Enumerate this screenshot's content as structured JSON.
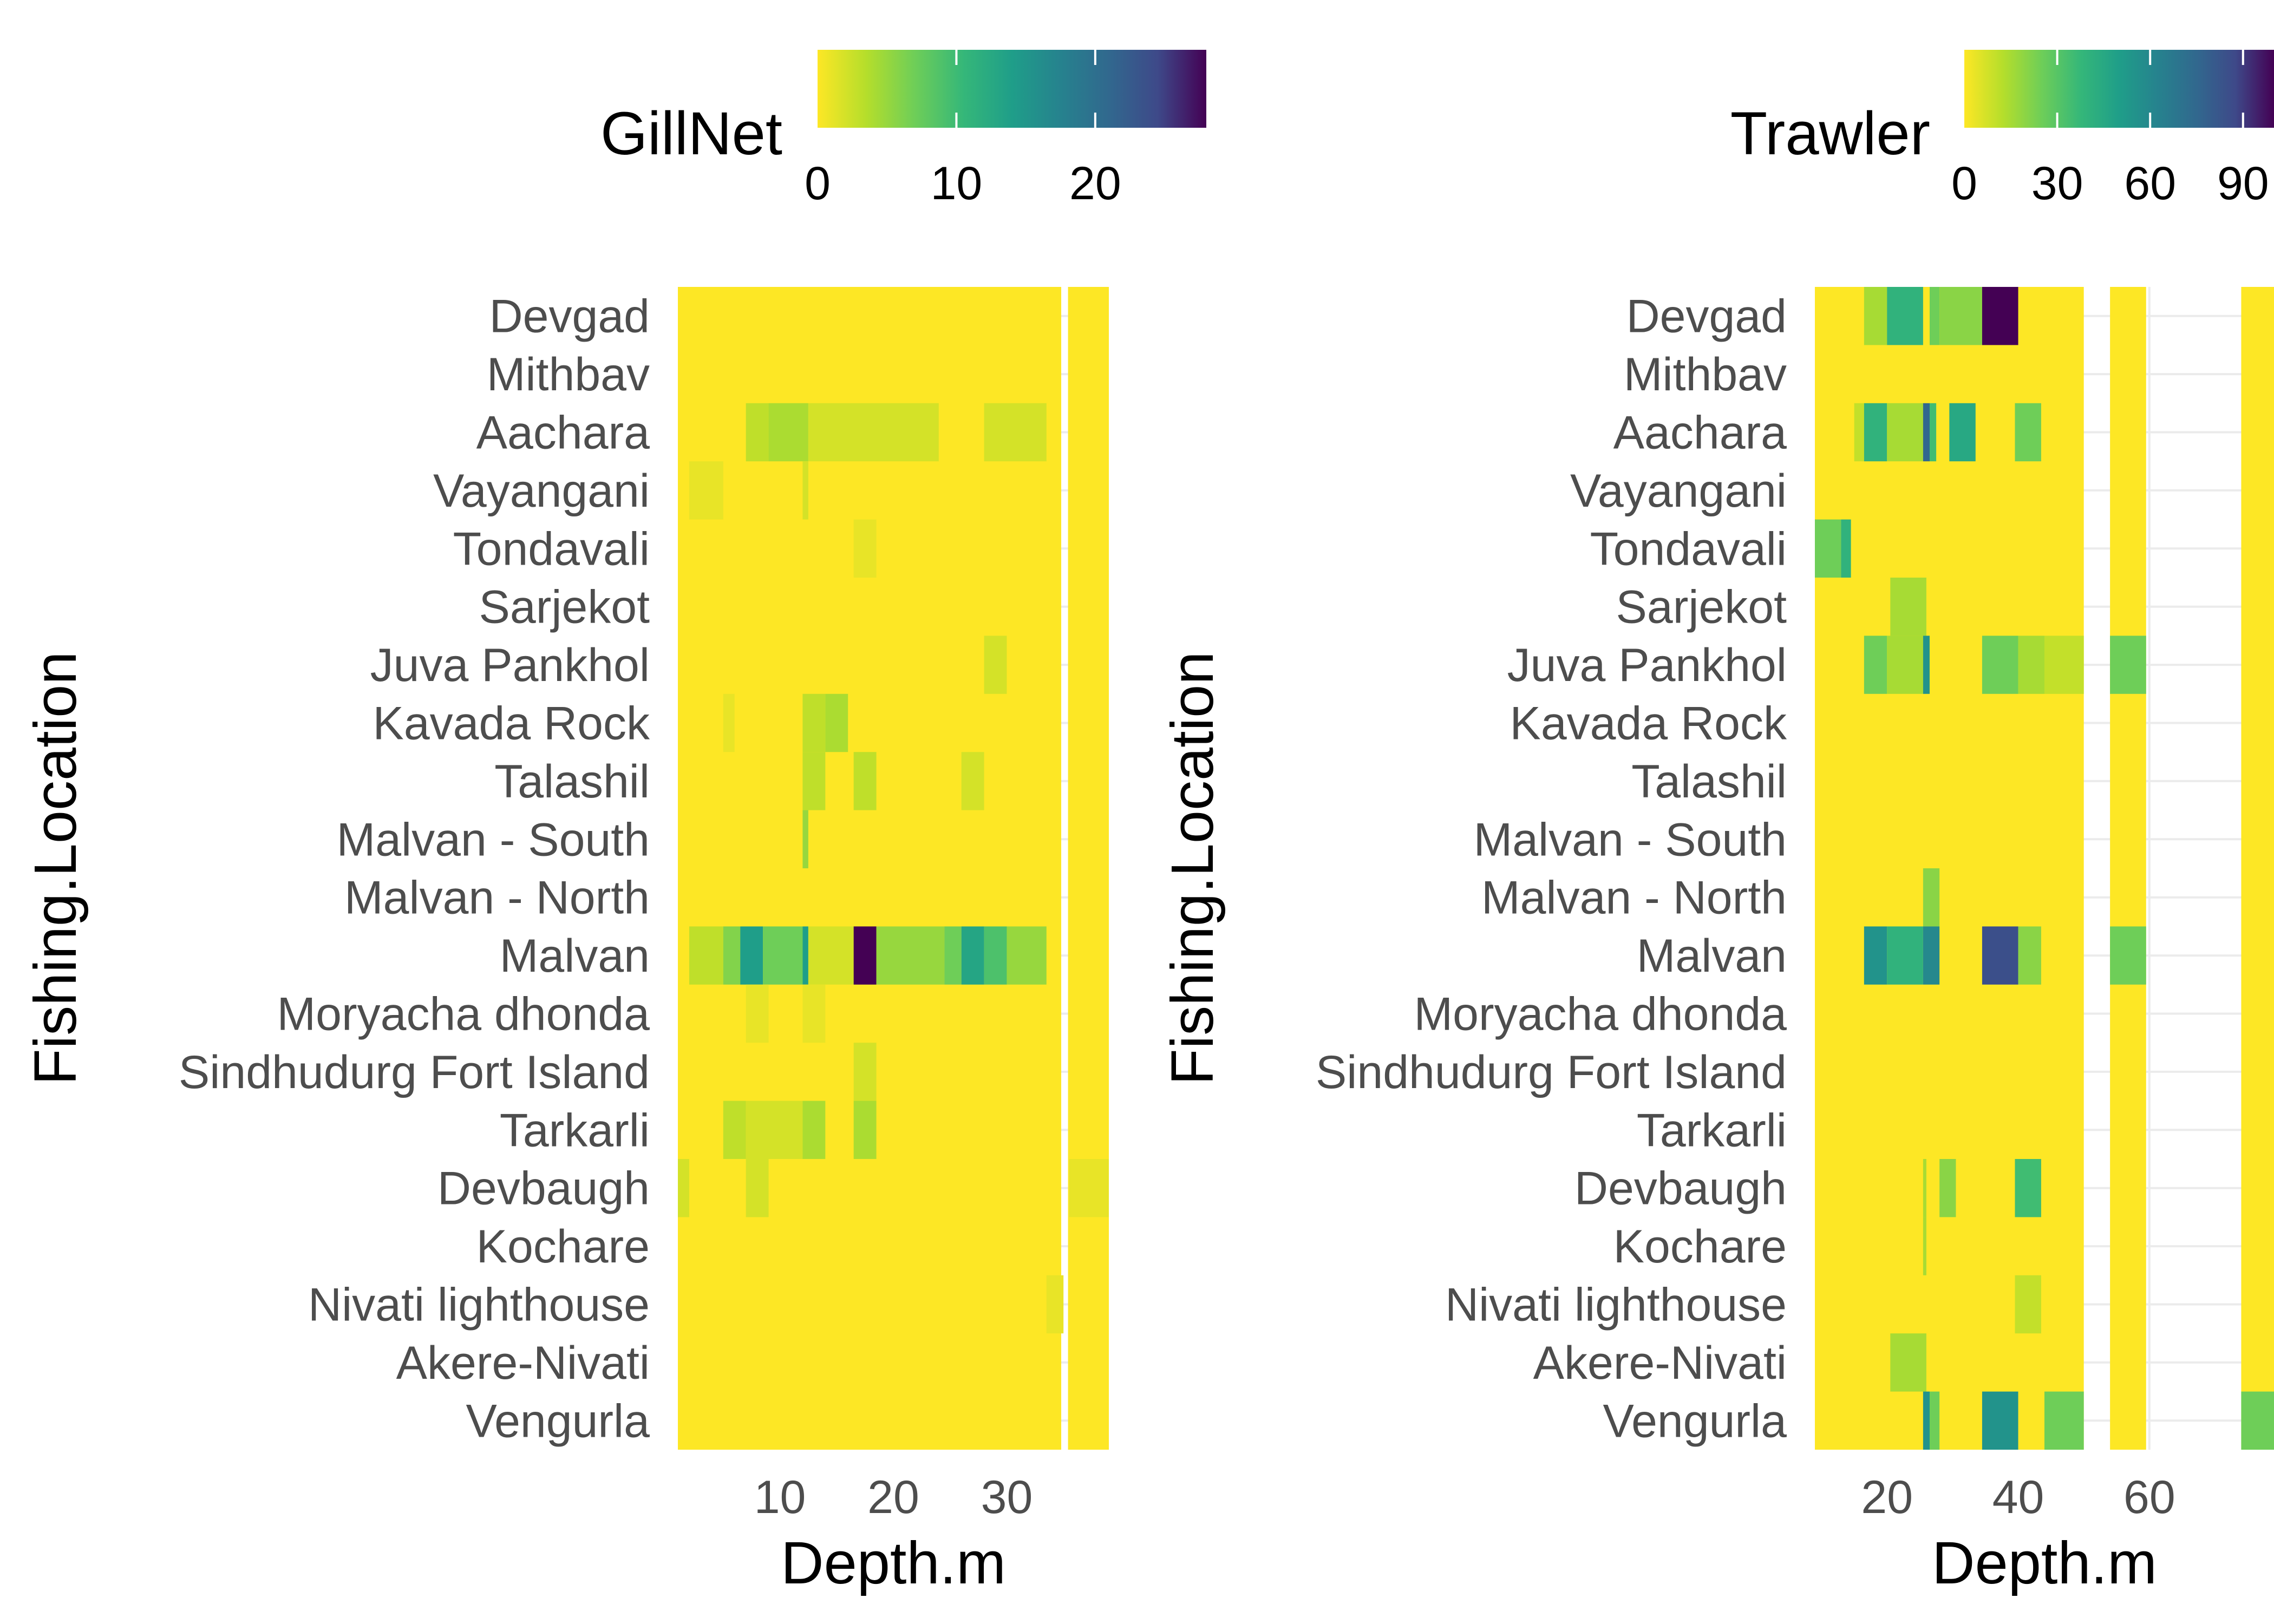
{
  "chart_data": [
    {
      "type": "heatmap",
      "legend_title": "GillNet",
      "legend_ticks": [
        0,
        10,
        20
      ],
      "legend_range": [
        0,
        28
      ],
      "legend_position": "top",
      "xlabel": "Depth.m",
      "ylabel": "Fishing.Location",
      "x_ticks": [
        10,
        20,
        30
      ],
      "xlim": [
        1,
        39
      ],
      "grid": true,
      "categories": [
        "Devgad",
        "Mithbav",
        "Aachara",
        "Vayangani",
        "Tondavali",
        "Sarjekot",
        "Juva Pankhol",
        "Kavada Rock",
        "Talashil",
        "Malvan - South",
        "Malvan - North",
        "Malvan",
        "Moryacha dhonda",
        "Sindhudurg Fort Island",
        "Tarkarli",
        "Devbaugh",
        "Kochare",
        "Nivati lighthouse",
        "Akere-Nivati",
        "Vengurla"
      ],
      "tiles_data_range": [
        {
          "x": [
            1,
            34.8
          ],
          "y": "all",
          "value": 0
        },
        {
          "x": [
            35.4,
            39
          ],
          "y": "all",
          "value": 0
        }
      ],
      "cells": [
        {
          "y": "Aachara",
          "x": [
            7,
            9
          ],
          "value": 3
        },
        {
          "y": "Aachara",
          "x": [
            9,
            12.5
          ],
          "value": 4
        },
        {
          "y": "Aachara",
          "x": [
            12.5,
            24
          ],
          "value": 2
        },
        {
          "y": "Aachara",
          "x": [
            28,
            33.5
          ],
          "value": 2
        },
        {
          "y": "Vayangani",
          "x": [
            2,
            5
          ],
          "value": 1
        },
        {
          "y": "Vayangani",
          "x": [
            12,
            12.5
          ],
          "value": 2
        },
        {
          "y": "Tondavali",
          "x": [
            16.5,
            18.5
          ],
          "value": 1
        },
        {
          "y": "Juva Pankhol",
          "x": [
            28,
            30
          ],
          "value": 2
        },
        {
          "y": "Kavada Rock",
          "x": [
            5,
            6
          ],
          "value": 1
        },
        {
          "y": "Kavada Rock",
          "x": [
            12,
            14
          ],
          "value": 3
        },
        {
          "y": "Kavada Rock",
          "x": [
            14,
            16
          ],
          "value": 4
        },
        {
          "y": "Talashil",
          "x": [
            12,
            14
          ],
          "value": 3
        },
        {
          "y": "Talashil",
          "x": [
            16.5,
            18.5
          ],
          "value": 3
        },
        {
          "y": "Talashil",
          "x": [
            26,
            28
          ],
          "value": 2
        },
        {
          "y": "Malvan - South",
          "x": [
            12,
            12.5
          ],
          "value": 5
        },
        {
          "y": "Malvan",
          "x": [
            2,
            5
          ],
          "value": 3
        },
        {
          "y": "Malvan",
          "x": [
            5,
            6.5
          ],
          "value": 6
        },
        {
          "y": "Malvan",
          "x": [
            6.5,
            8.5
          ],
          "value": 14
        },
        {
          "y": "Malvan",
          "x": [
            8.5,
            12
          ],
          "value": 7
        },
        {
          "y": "Malvan",
          "x": [
            12,
            12.5
          ],
          "value": 14
        },
        {
          "y": "Malvan",
          "x": [
            12.5,
            16.5
          ],
          "value": 2
        },
        {
          "y": "Malvan",
          "x": [
            16.5,
            18.5
          ],
          "value": 28
        },
        {
          "y": "Malvan",
          "x": [
            18.5,
            24.5
          ],
          "value": 5
        },
        {
          "y": "Malvan",
          "x": [
            24.5,
            26
          ],
          "value": 7
        },
        {
          "y": "Malvan",
          "x": [
            26,
            28
          ],
          "value": 13
        },
        {
          "y": "Malvan",
          "x": [
            28,
            30
          ],
          "value": 9
        },
        {
          "y": "Malvan",
          "x": [
            30,
            33.5
          ],
          "value": 5
        },
        {
          "y": "Moryacha dhonda",
          "x": [
            7,
            9
          ],
          "value": 1
        },
        {
          "y": "Moryacha dhonda",
          "x": [
            12,
            14
          ],
          "value": 1
        },
        {
          "y": "Sindhudurg Fort Island",
          "x": [
            16.5,
            18.5
          ],
          "value": 2
        },
        {
          "y": "Tarkarli",
          "x": [
            5,
            7
          ],
          "value": 3
        },
        {
          "y": "Tarkarli",
          "x": [
            7,
            12
          ],
          "value": 2
        },
        {
          "y": "Tarkarli",
          "x": [
            12,
            14
          ],
          "value": 4
        },
        {
          "y": "Tarkarli",
          "x": [
            16.5,
            18.5
          ],
          "value": 4
        },
        {
          "y": "Devbaugh",
          "x": [
            1,
            2
          ],
          "value": 2
        },
        {
          "y": "Devbaugh",
          "x": [
            7,
            9
          ],
          "value": 2
        },
        {
          "y": "Devbaugh",
          "x": [
            35.5,
            39
          ],
          "value": 1
        },
        {
          "y": "Nivati lighthouse",
          "x": [
            33.5,
            35
          ],
          "value": 1
        }
      ]
    },
    {
      "type": "heatmap",
      "legend_title": "Trawler",
      "legend_ticks": [
        0,
        30,
        60,
        90
      ],
      "legend_range": [
        0,
        100
      ],
      "legend_position": "top",
      "xlabel": "Depth.m",
      "ylabel": "Fishing.Location",
      "x_ticks": [
        20,
        40,
        60
      ],
      "xlim": [
        9,
        79
      ],
      "grid": true,
      "categories": [
        "Devgad",
        "Mithbav",
        "Aachara",
        "Vayangani",
        "Tondavali",
        "Sarjekot",
        "Juva Pankhol",
        "Kavada Rock",
        "Talashil",
        "Malvan - South",
        "Malvan - North",
        "Malvan",
        "Moryacha dhonda",
        "Sindhudurg Fort Island",
        "Tarkarli",
        "Devbaugh",
        "Kochare",
        "Nivati lighthouse",
        "Akere-Nivati",
        "Vengurla"
      ],
      "tiles_data_range": [
        {
          "x": [
            9,
            50
          ],
          "y": "all",
          "value": 0
        },
        {
          "x": [
            54,
            59.5
          ],
          "y": "all",
          "value": 0
        },
        {
          "x": [
            74,
            79
          ],
          "y": "all",
          "value": 0
        }
      ],
      "cells": [
        {
          "y": "Devgad",
          "x": [
            16.5,
            20
          ],
          "value": 15
        },
        {
          "y": "Devgad",
          "x": [
            20,
            25.5
          ],
          "value": 40
        },
        {
          "y": "Devgad",
          "x": [
            26.5,
            28
          ],
          "value": 25
        },
        {
          "y": "Devgad",
          "x": [
            28,
            34.5
          ],
          "value": 20
        },
        {
          "y": "Devgad",
          "x": [
            34.5,
            40
          ],
          "value": 100
        },
        {
          "y": "Aachara",
          "x": [
            15,
            16.5
          ],
          "value": 10
        },
        {
          "y": "Aachara",
          "x": [
            16.5,
            20
          ],
          "value": 40
        },
        {
          "y": "Aachara",
          "x": [
            20,
            25.5
          ],
          "value": 15
        },
        {
          "y": "Aachara",
          "x": [
            25.5,
            26.5
          ],
          "value": 75
        },
        {
          "y": "Aachara",
          "x": [
            26.5,
            27.5
          ],
          "value": 35
        },
        {
          "y": "Aachara",
          "x": [
            29.5,
            33.5
          ],
          "value": 45
        },
        {
          "y": "Aachara",
          "x": [
            39.5,
            43.5
          ],
          "value": 25
        },
        {
          "y": "Tondavali",
          "x": [
            9,
            13
          ],
          "value": 25
        },
        {
          "y": "Tondavali",
          "x": [
            13,
            14.5
          ],
          "value": 40
        },
        {
          "y": "Sarjekot",
          "x": [
            20.5,
            26
          ],
          "value": 15
        },
        {
          "y": "Juva Pankhol",
          "x": [
            16.5,
            20
          ],
          "value": 25
        },
        {
          "y": "Juva Pankhol",
          "x": [
            20,
            25.5
          ],
          "value": 15
        },
        {
          "y": "Juva Pankhol",
          "x": [
            25.5,
            26.5
          ],
          "value": 55
        },
        {
          "y": "Juva Pankhol",
          "x": [
            34.5,
            40
          ],
          "value": 25
        },
        {
          "y": "Juva Pankhol",
          "x": [
            40,
            44
          ],
          "value": 15
        },
        {
          "y": "Juva Pankhol",
          "x": [
            44,
            50
          ],
          "value": 10
        },
        {
          "y": "Juva Pankhol",
          "x": [
            54,
            59.5
          ],
          "value": 25
        },
        {
          "y": "Malvan - North",
          "x": [
            25.5,
            28
          ],
          "value": 20
        },
        {
          "y": "Malvan",
          "x": [
            16.5,
            20
          ],
          "value": 55
        },
        {
          "y": "Malvan",
          "x": [
            20,
            25.5
          ],
          "value": 40
        },
        {
          "y": "Malvan",
          "x": [
            25.5,
            28
          ],
          "value": 60
        },
        {
          "y": "Malvan",
          "x": [
            34.5,
            40
          ],
          "value": 85
        },
        {
          "y": "Malvan",
          "x": [
            40,
            43.5
          ],
          "value": 20
        },
        {
          "y": "Malvan",
          "x": [
            54,
            59.5
          ],
          "value": 25
        },
        {
          "y": "Devbaugh",
          "x": [
            25.5,
            26
          ],
          "value": 15
        },
        {
          "y": "Devbaugh",
          "x": [
            28,
            30.5
          ],
          "value": 20
        },
        {
          "y": "Devbaugh",
          "x": [
            39.5,
            43.5
          ],
          "value": 35
        },
        {
          "y": "Kochare",
          "x": [
            25.5,
            26
          ],
          "value": 15
        },
        {
          "y": "Nivati lighthouse",
          "x": [
            39.5,
            43.5
          ],
          "value": 10
        },
        {
          "y": "Akere-Nivati",
          "x": [
            20.5,
            26
          ],
          "value": 15
        },
        {
          "y": "Vengurla",
          "x": [
            25.5,
            26.5
          ],
          "value": 55
        },
        {
          "y": "Vengurla",
          "x": [
            26.5,
            28
          ],
          "value": 25
        },
        {
          "y": "Vengurla",
          "x": [
            34.5,
            40
          ],
          "value": 55
        },
        {
          "y": "Vengurla",
          "x": [
            44,
            50
          ],
          "value": 25
        },
        {
          "y": "Vengurla",
          "x": [
            74,
            79
          ],
          "value": 25
        }
      ]
    }
  ]
}
